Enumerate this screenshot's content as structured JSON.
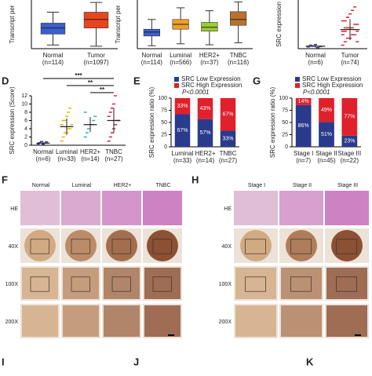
{
  "chart_data": [
    {
      "type": "box",
      "ylabel": "Transcript per",
      "categories": [
        "Normal",
        "Tumor"
      ],
      "n_labels": [
        "(n=114)",
        "(n=1097)"
      ],
      "colors": [
        "#3a5fcd",
        "#e8451e"
      ],
      "ylim": [
        0,
        40
      ],
      "boxes": [
        {
          "min": 3,
          "q1": 12,
          "median": 17,
          "q3": 21,
          "max": 30
        },
        {
          "min": 2,
          "q1": 17,
          "median": 24,
          "q3": 30,
          "max": 38
        }
      ]
    },
    {
      "type": "box",
      "ylabel": "Transcript per",
      "categories": [
        "Normal",
        "Luminal",
        "HER2+",
        "TNBC"
      ],
      "n_labels": [
        "(n=114)",
        "(n=566)",
        "(n=37)",
        "(n=116)"
      ],
      "colors": [
        "#3a5fcd",
        "#f0a020",
        "#9acd32",
        "#b8722c"
      ],
      "ylim": [
        0,
        50
      ],
      "boxes": [
        {
          "min": 3,
          "q1": 13,
          "median": 17,
          "q3": 20,
          "max": 30
        },
        {
          "min": 5,
          "q1": 20,
          "median": 25,
          "q3": 30,
          "max": 42
        },
        {
          "min": 4,
          "q1": 18,
          "median": 22,
          "q3": 27,
          "max": 39
        },
        {
          "min": 6,
          "q1": 24,
          "median": 30,
          "q3": 38,
          "max": 48
        }
      ]
    },
    {
      "type": "scatter",
      "ylabel": "SRC expression",
      "categories": [
        "Normal",
        "Tumor"
      ],
      "n_labels": [
        "(n=6)",
        "(n=74)"
      ],
      "colors": [
        "#3a3a9a",
        "#e8202a"
      ],
      "ylim": [
        0,
        14
      ],
      "points": [
        [
          0.5,
          1,
          0.8,
          1.2,
          0.3,
          0.6
        ],
        [
          1,
          2,
          3,
          3,
          4,
          4,
          5,
          5,
          5,
          6,
          6,
          6,
          7,
          7,
          8,
          8,
          9,
          10,
          11,
          12,
          2,
          4,
          6,
          9
        ]
      ],
      "mean": [
        0.7,
        5.5
      ],
      "sd": [
        0.4,
        3
      ]
    },
    {
      "type": "scatter",
      "ylabel": "SRC expression (Score)",
      "categories": [
        "Normal",
        "Luminal",
        "HER2+",
        "TNBC"
      ],
      "n_labels": [
        "(n=6)",
        "(n=33)",
        "(n=14)",
        "(n=27)"
      ],
      "colors": [
        "#3a3a9a",
        "#f0b400",
        "#3ab0a0",
        "#e02040"
      ],
      "ylim": [
        0,
        12
      ],
      "yticks": [
        0,
        2,
        4,
        6,
        8,
        10,
        12
      ],
      "points": [
        [
          0.3,
          0.6,
          0.9,
          0.2,
          0.5,
          0.8
        ],
        [
          1,
          2,
          3,
          3,
          4,
          4,
          5,
          5,
          6,
          6,
          7,
          8,
          9
        ],
        [
          2,
          3,
          4,
          5,
          5,
          6,
          7,
          8
        ],
        [
          1,
          2,
          3,
          4,
          5,
          6,
          6,
          7,
          8,
          9,
          10,
          12
        ]
      ],
      "mean": [
        0.5,
        4.5,
        5,
        6
      ],
      "sd": [
        0.3,
        2,
        1.8,
        3
      ],
      "annotations": [
        "***",
        "**",
        "**"
      ]
    },
    {
      "type": "stacked_bar",
      "ylabel": "SRC expression ratio (%)",
      "categories": [
        "Luminal",
        "HER2+",
        "TNBC"
      ],
      "n_labels": [
        "(n=33)",
        "(n=14)",
        "(n=27)"
      ],
      "ylim": [
        0,
        100
      ],
      "yticks": [
        0,
        25,
        50,
        75,
        100
      ],
      "note": "P<0.0001",
      "series": [
        {
          "name": "SRC Low Expression",
          "color": "#2a3a8c",
          "values": [
            67,
            57,
            33
          ],
          "value_labels": [
            "67%",
            "57%",
            "33%"
          ]
        },
        {
          "name": "SRC High Expression",
          "color": "#e0202a",
          "values": [
            33,
            43,
            67
          ],
          "value_labels": [
            "33%",
            "43%",
            "67%"
          ]
        }
      ]
    },
    {
      "type": "stacked_bar",
      "ylabel": "SRC expression ratio (%)",
      "categories": [
        "Stage I",
        "Stage II",
        "Stage III"
      ],
      "n_labels": [
        "(n=7)",
        "(n=45)",
        "(n=22)"
      ],
      "ylim": [
        0,
        100
      ],
      "yticks": [
        0,
        25,
        50,
        75,
        100
      ],
      "note": "P<0.0001",
      "series": [
        {
          "name": "SRC Low Expression",
          "color": "#2a3a8c",
          "values": [
            86,
            51,
            23
          ],
          "value_labels": [
            "86%",
            "51%",
            "23%"
          ]
        },
        {
          "name": "SRC High Expression",
          "color": "#e0202a",
          "values": [
            14,
            49,
            77
          ],
          "value_labels": [
            "14%",
            "49%",
            "77%"
          ]
        }
      ]
    }
  ],
  "panel_labels": {
    "D": "D",
    "E": "E",
    "G": "G",
    "F": "F",
    "H": "H",
    "I": "I",
    "J": "J",
    "K": "K"
  },
  "image_grids": [
    {
      "columns": [
        "Normal",
        "Luminal",
        "HER2+",
        "TNBC"
      ],
      "rows": [
        "HE",
        "40X",
        "100X",
        "200X"
      ]
    },
    {
      "columns": [
        "Stage I",
        "Stage II",
        "Stage III"
      ],
      "rows": [
        "HE",
        "40X",
        "100X",
        "200X"
      ]
    }
  ]
}
